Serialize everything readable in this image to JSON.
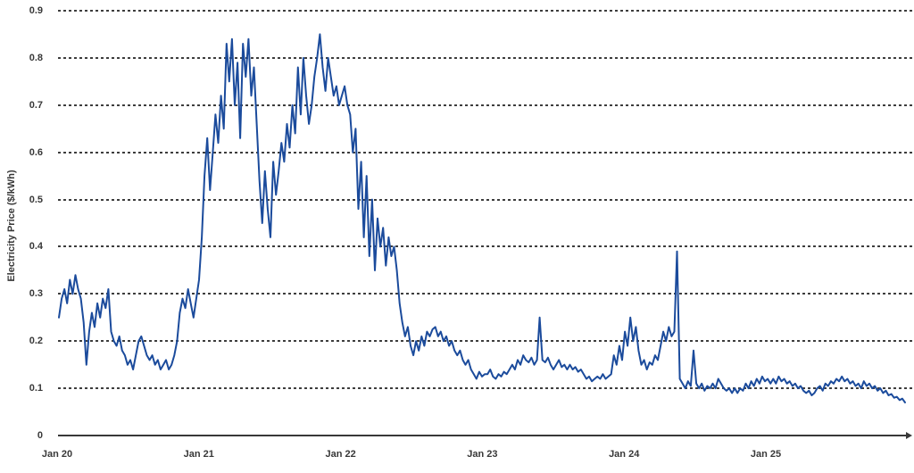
{
  "colors": {
    "line": "#1b4b9c",
    "axis_text": "#383838",
    "gridline": "#3d3d3d",
    "background": "#ffffff"
  },
  "chart_data": {
    "type": "line",
    "title": "",
    "xlabel": "",
    "ylabel": "Electricity Price ($/kWh)",
    "x_tick_labels": [
      "Jan 20",
      "Jan 21",
      "Jan 22",
      "Jan 23",
      "Jan 24",
      "Jan 25"
    ],
    "y_tick_labels": [
      "0",
      "0.1",
      "0.2",
      "0.3",
      "0.4",
      "0.5",
      "0.6",
      "0.7",
      "0.8",
      "0.9"
    ],
    "ylim": [
      0,
      0.9
    ],
    "grid": "dotted-horizontal",
    "legend": "none",
    "x_start": "Jan 2020",
    "x_end": "Dec 2025",
    "sampling": "weekly",
    "series": [
      {
        "name": "Electricity Price ($/kWh)",
        "values": [
          0.25,
          0.29,
          0.31,
          0.28,
          0.33,
          0.3,
          0.34,
          0.31,
          0.29,
          0.24,
          0.15,
          0.22,
          0.26,
          0.23,
          0.28,
          0.25,
          0.29,
          0.27,
          0.31,
          0.22,
          0.2,
          0.19,
          0.21,
          0.18,
          0.17,
          0.15,
          0.16,
          0.14,
          0.17,
          0.2,
          0.21,
          0.19,
          0.17,
          0.16,
          0.17,
          0.15,
          0.16,
          0.14,
          0.15,
          0.16,
          0.14,
          0.15,
          0.17,
          0.2,
          0.26,
          0.29,
          0.27,
          0.31,
          0.28,
          0.25,
          0.29,
          0.33,
          0.42,
          0.55,
          0.63,
          0.52,
          0.6,
          0.68,
          0.62,
          0.72,
          0.65,
          0.83,
          0.75,
          0.84,
          0.7,
          0.79,
          0.63,
          0.83,
          0.76,
          0.84,
          0.72,
          0.78,
          0.66,
          0.54,
          0.45,
          0.56,
          0.48,
          0.42,
          0.58,
          0.51,
          0.56,
          0.62,
          0.58,
          0.66,
          0.61,
          0.7,
          0.64,
          0.78,
          0.68,
          0.8,
          0.72,
          0.66,
          0.7,
          0.76,
          0.8,
          0.85,
          0.78,
          0.73,
          0.8,
          0.76,
          0.72,
          0.74,
          0.7,
          0.72,
          0.74,
          0.7,
          0.68,
          0.6,
          0.65,
          0.48,
          0.58,
          0.42,
          0.55,
          0.38,
          0.5,
          0.35,
          0.46,
          0.4,
          0.44,
          0.36,
          0.42,
          0.38,
          0.4,
          0.35,
          0.28,
          0.24,
          0.21,
          0.23,
          0.19,
          0.17,
          0.2,
          0.18,
          0.21,
          0.19,
          0.22,
          0.21,
          0.225,
          0.23,
          0.21,
          0.22,
          0.2,
          0.21,
          0.19,
          0.2,
          0.18,
          0.17,
          0.18,
          0.16,
          0.15,
          0.16,
          0.14,
          0.13,
          0.12,
          0.135,
          0.125,
          0.13,
          0.13,
          0.14,
          0.125,
          0.12,
          0.13,
          0.125,
          0.135,
          0.13,
          0.14,
          0.15,
          0.14,
          0.16,
          0.15,
          0.17,
          0.16,
          0.155,
          0.165,
          0.15,
          0.16,
          0.25,
          0.16,
          0.155,
          0.165,
          0.15,
          0.14,
          0.15,
          0.16,
          0.145,
          0.15,
          0.14,
          0.15,
          0.14,
          0.145,
          0.135,
          0.14,
          0.13,
          0.12,
          0.125,
          0.115,
          0.12,
          0.125,
          0.12,
          0.13,
          0.12,
          0.125,
          0.13,
          0.17,
          0.15,
          0.19,
          0.16,
          0.22,
          0.19,
          0.25,
          0.2,
          0.23,
          0.18,
          0.15,
          0.16,
          0.14,
          0.155,
          0.15,
          0.17,
          0.16,
          0.19,
          0.22,
          0.2,
          0.23,
          0.21,
          0.22,
          0.39,
          0.12,
          0.11,
          0.1,
          0.115,
          0.105,
          0.18,
          0.11,
          0.1,
          0.11,
          0.095,
          0.105,
          0.1,
          0.11,
          0.1,
          0.12,
          0.11,
          0.1,
          0.095,
          0.1,
          0.09,
          0.1,
          0.09,
          0.1,
          0.095,
          0.11,
          0.1,
          0.115,
          0.105,
          0.12,
          0.11,
          0.125,
          0.115,
          0.12,
          0.11,
          0.12,
          0.11,
          0.125,
          0.115,
          0.12,
          0.11,
          0.115,
          0.105,
          0.11,
          0.1,
          0.105,
          0.095,
          0.09,
          0.095,
          0.085,
          0.09,
          0.1,
          0.105,
          0.095,
          0.11,
          0.105,
          0.115,
          0.11,
          0.12,
          0.115,
          0.125,
          0.115,
          0.12,
          0.11,
          0.115,
          0.105,
          0.11,
          0.1,
          0.115,
          0.105,
          0.11,
          0.1,
          0.105,
          0.095,
          0.1,
          0.09,
          0.095,
          0.085,
          0.088,
          0.08,
          0.082,
          0.075,
          0.078,
          0.07
        ]
      }
    ]
  }
}
